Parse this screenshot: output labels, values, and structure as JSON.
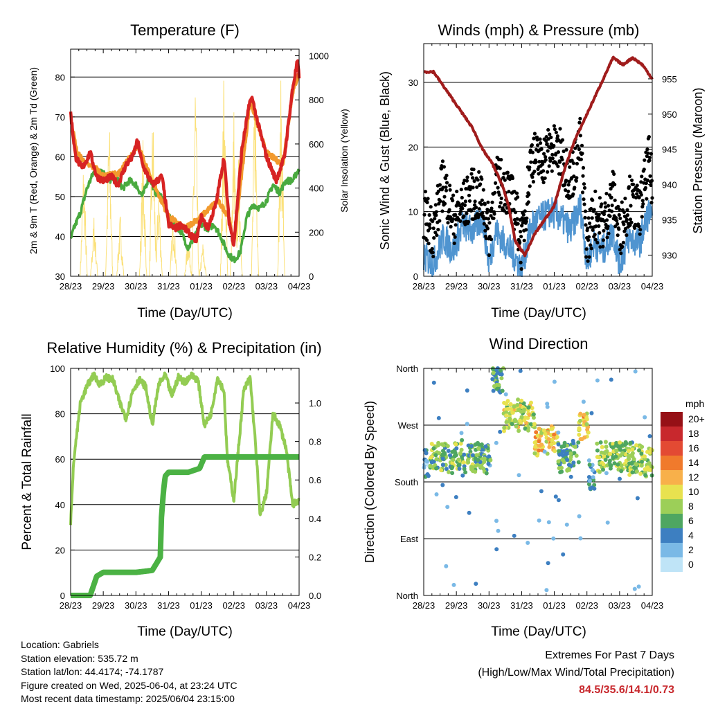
{
  "chart_data": [
    {
      "type": "line",
      "title": "Temperature (F)",
      "xlabel": "Time (Day/UTC)",
      "ylabel": "2m & 9m T (Red, Orange) & 2m Td (Green)",
      "ylabel_right": "Solar Insolation (Yellow)",
      "x_ticks": [
        "28/23",
        "29/23",
        "30/23",
        "31/23",
        "01/23",
        "02/23",
        "03/23",
        "04/23"
      ],
      "ylim": [
        30,
        87
      ],
      "yticks": [
        30,
        40,
        50,
        60,
        70,
        80
      ],
      "y2lim": [
        0,
        1030
      ],
      "y2ticks": [
        0,
        200,
        400,
        600,
        800,
        1000
      ],
      "grid": "horizontal",
      "series": [
        {
          "name": "2m T",
          "color": "#d72323",
          "axis": "left",
          "x": [
            0,
            0.15,
            0.35,
            0.6,
            0.8,
            1.0,
            1.25,
            1.45,
            1.55,
            1.7,
            1.9,
            2.05,
            2.2,
            2.5,
            2.8,
            3.0,
            3.2,
            3.4,
            3.6,
            3.85,
            4.0,
            4.2,
            4.45,
            4.7,
            4.85,
            5.0,
            5.25,
            5.45,
            5.55,
            5.75,
            6.0,
            6.3,
            6.55,
            6.8,
            6.95,
            7.0
          ],
          "y": [
            71,
            60,
            57,
            61,
            55,
            54,
            55,
            53,
            55,
            58,
            60,
            64,
            58,
            53,
            55,
            43,
            42,
            43,
            41,
            39,
            45,
            42,
            48,
            60,
            44,
            38,
            62,
            72,
            75,
            68,
            60,
            54,
            60,
            77,
            84,
            80
          ]
        },
        {
          "name": "9m T",
          "color": "#f29a2e",
          "axis": "left",
          "x": [
            0,
            0.2,
            0.5,
            0.8,
            1.0,
            1.5,
            2.05,
            2.5,
            3.0,
            3.5,
            4.0,
            4.5,
            4.85,
            5.0,
            5.5,
            6.0,
            6.5,
            6.8,
            7.0
          ],
          "y": [
            70,
            61,
            58,
            57,
            55,
            56,
            63,
            54,
            45,
            42,
            45,
            49,
            45,
            38,
            74,
            61,
            58,
            76,
            81
          ]
        },
        {
          "name": "2m Td",
          "color": "#49aa3f",
          "axis": "left",
          "x": [
            0,
            0.1,
            0.3,
            0.5,
            0.7,
            0.9,
            1.0,
            1.2,
            1.4,
            1.6,
            1.8,
            2.0,
            2.2,
            2.4,
            2.6,
            2.8,
            3.0,
            3.2,
            3.4,
            3.6,
            3.8,
            4.0,
            4.2,
            4.4,
            4.6,
            4.8,
            5.0,
            5.2,
            5.4,
            5.6,
            5.8,
            6.0,
            6.2,
            6.4,
            6.6,
            6.8,
            7.0
          ],
          "y": [
            39,
            42,
            46,
            52,
            56,
            57,
            56,
            54,
            55,
            52,
            54,
            53,
            50,
            55,
            51,
            50,
            45,
            43,
            41,
            37,
            40,
            43,
            42,
            43,
            40,
            36,
            34,
            36,
            45,
            48,
            47,
            49,
            53,
            51,
            54,
            54,
            57
          ]
        },
        {
          "name": "Solar",
          "color": "#fbe17a",
          "axis": "right",
          "peaks": [
            {
              "x": 0.4,
              "y": 580
            },
            {
              "x": 0.72,
              "y": 300
            },
            {
              "x": 1.18,
              "y": 810
            },
            {
              "x": 1.52,
              "y": 300
            },
            {
              "x": 2.22,
              "y": 650
            },
            {
              "x": 2.52,
              "y": 820
            },
            {
              "x": 2.7,
              "y": 450
            },
            {
              "x": 3.15,
              "y": 330
            },
            {
              "x": 3.6,
              "y": 200
            },
            {
              "x": 3.82,
              "y": 1000
            },
            {
              "x": 4.05,
              "y": 160
            },
            {
              "x": 4.7,
              "y": 1010
            },
            {
              "x": 5.0,
              "y": 800
            },
            {
              "x": 5.15,
              "y": 580
            },
            {
              "x": 5.65,
              "y": 1010
            },
            {
              "x": 6.45,
              "y": 980
            }
          ]
        }
      ]
    },
    {
      "type": "scatter",
      "title": "Winds (mph) & Pressure (mb)",
      "xlabel": "Time (Day/UTC)",
      "ylabel": "Sonic Wind & Gust (Blue, Black)",
      "ylabel_right": "Station Pressure (Maroon)",
      "x_ticks": [
        "28/23",
        "29/23",
        "30/23",
        "31/23",
        "01/23",
        "02/23",
        "03/23",
        "04/23"
      ],
      "ylim": [
        0,
        36
      ],
      "yticks": [
        0,
        10,
        20,
        30
      ],
      "y2lim": [
        927,
        960
      ],
      "y2ticks": [
        930,
        935,
        940,
        945,
        950,
        955
      ],
      "grid": "horizontal",
      "series": [
        {
          "name": "Gust",
          "color": "#000000",
          "x": [
            0,
            0.3,
            0.6,
            0.9,
            1.2,
            1.5,
            1.8,
            2.0,
            2.2,
            2.5,
            2.8,
            3.0,
            3.3,
            3.6,
            3.9,
            4.2,
            4.5,
            4.8,
            5.0,
            5.2,
            5.5,
            5.8,
            6.0,
            6.3,
            6.6,
            6.9,
            7.0
          ],
          "y": [
            9,
            6,
            14,
            8,
            10,
            12,
            11,
            6,
            14,
            13,
            10,
            4,
            18,
            17,
            19,
            18,
            14,
            20,
            4,
            9,
            7,
            12,
            6,
            11,
            9,
            17,
            13
          ]
        },
        {
          "name": "Wind",
          "color": "#4f94d0",
          "x": [
            0,
            0.3,
            0.6,
            0.9,
            1.2,
            1.5,
            1.8,
            2.0,
            2.2,
            2.5,
            2.8,
            3.0,
            3.3,
            3.6,
            3.9,
            4.2,
            4.5,
            4.8,
            5.0,
            5.2,
            5.5,
            5.8,
            6.0,
            6.3,
            6.6,
            6.9,
            7.0
          ],
          "y": [
            3,
            2,
            6,
            4,
            8,
            7,
            9,
            2,
            7,
            5,
            3,
            1,
            8,
            9,
            10,
            9,
            7,
            11,
            2,
            5,
            4,
            7,
            2,
            6,
            5,
            10,
            8
          ]
        },
        {
          "name": "Pressure",
          "color": "#a01c1c",
          "axis": "right",
          "x": [
            0,
            0.3,
            0.6,
            0.9,
            1.2,
            1.5,
            1.8,
            2.1,
            2.4,
            2.6,
            2.8,
            3.1,
            3.4,
            3.7,
            4.0,
            4.3,
            4.6,
            4.9,
            5.2,
            5.5,
            5.8,
            6.1,
            6.4,
            6.7,
            7.0
          ],
          "y": [
            956,
            956,
            954,
            952,
            950,
            948,
            945,
            943,
            940,
            937,
            932,
            930,
            933,
            935,
            937,
            942,
            946,
            949,
            952,
            955,
            958,
            957,
            958,
            957,
            955
          ]
        }
      ]
    },
    {
      "type": "line",
      "title": "Relative Humidity (%) & Precipitation (in)",
      "xlabel": "Time (Day/UTC)",
      "ylabel": "Percent & Total Rainfall",
      "x_ticks": [
        "28/23",
        "29/23",
        "30/23",
        "31/23",
        "01/23",
        "02/23",
        "03/23",
        "04/23"
      ],
      "ylim": [
        0,
        100
      ],
      "yticks": [
        0,
        20,
        40,
        60,
        80,
        100
      ],
      "y2lim": [
        0,
        1.18
      ],
      "y2ticks": [
        0.0,
        0.2,
        0.4,
        0.6,
        0.8,
        1.0
      ],
      "grid": "horizontal",
      "series": [
        {
          "name": "RH",
          "color": "#93cc53",
          "axis": "left",
          "x": [
            0,
            0.1,
            0.3,
            0.5,
            0.7,
            0.9,
            1.1,
            1.3,
            1.5,
            1.7,
            1.9,
            2.1,
            2.3,
            2.5,
            2.7,
            2.9,
            3.1,
            3.3,
            3.5,
            3.7,
            3.9,
            4.1,
            4.3,
            4.5,
            4.7,
            4.8,
            5.0,
            5.3,
            5.5,
            5.7,
            5.8,
            6.0,
            6.2,
            6.4,
            6.6,
            6.8,
            7.0
          ],
          "y": [
            32,
            60,
            85,
            92,
            97,
            93,
            96,
            95,
            85,
            78,
            90,
            95,
            92,
            75,
            93,
            97,
            88,
            96,
            94,
            97,
            95,
            75,
            80,
            96,
            90,
            60,
            42,
            90,
            96,
            60,
            35,
            45,
            80,
            75,
            65,
            40,
            42
          ]
        },
        {
          "name": "Precipitation",
          "color": "#4bb244",
          "axis": "right",
          "x": [
            0,
            0.6,
            0.7,
            0.8,
            1.0,
            2.0,
            2.5,
            2.75,
            2.78,
            2.85,
            2.9,
            3.0,
            3.3,
            3.6,
            3.95,
            4.1,
            4.4,
            6.0,
            7.0
          ],
          "y": [
            0,
            0,
            0.05,
            0.1,
            0.12,
            0.12,
            0.13,
            0.2,
            0.4,
            0.55,
            0.62,
            0.64,
            0.64,
            0.64,
            0.66,
            0.72,
            0.72,
            0.72,
            0.72
          ]
        }
      ]
    },
    {
      "type": "scatter",
      "title": "Wind Direction",
      "xlabel": "Time (Day/UTC)",
      "ylabel": "Direction (Colored By Speed)",
      "x_ticks": [
        "28/23",
        "29/23",
        "30/23",
        "31/23",
        "01/23",
        "02/23",
        "03/23",
        "04/23"
      ],
      "ylim": [
        0,
        360
      ],
      "ytick_labels": [
        "North",
        "East",
        "South",
        "West",
        "North"
      ],
      "ytick_values": [
        0,
        90,
        180,
        270,
        360
      ],
      "legend_title": "mph",
      "legend_labels": [
        "20+",
        "18",
        "16",
        "14",
        "12",
        "10",
        "8",
        "6",
        "4",
        "2",
        "0"
      ],
      "legend_colors": [
        "#961016",
        "#c8282d",
        "#e34a33",
        "#f07a2c",
        "#f8b04a",
        "#e8e24f",
        "#9ccf58",
        "#4ea661",
        "#3d7fc1",
        "#7ab9e6",
        "#bfe4f7"
      ],
      "regimes": [
        {
          "x_start": 0.0,
          "x_end": 0.15,
          "direction": 210,
          "speed": 3
        },
        {
          "x_start": 0.2,
          "x_end": 1.6,
          "direction": 220,
          "speed": 7
        },
        {
          "x_start": 1.6,
          "x_end": 2.05,
          "direction": 215,
          "speed": 6
        },
        {
          "x_start": 2.1,
          "x_end": 2.45,
          "direction": 340,
          "speed": 6
        },
        {
          "x_start": 2.45,
          "x_end": 3.4,
          "direction": 285,
          "speed": 9
        },
        {
          "x_start": 3.4,
          "x_end": 4.1,
          "direction": 245,
          "speed": 11
        },
        {
          "x_start": 4.1,
          "x_end": 4.75,
          "direction": 220,
          "speed": 6
        },
        {
          "x_start": 4.75,
          "x_end": 5.05,
          "direction": 270,
          "speed": 11
        },
        {
          "x_start": 5.05,
          "x_end": 5.25,
          "direction": 190,
          "speed": 4
        },
        {
          "x_start": 5.3,
          "x_end": 6.3,
          "direction": 220,
          "speed": 8
        },
        {
          "x_start": 6.3,
          "x_end": 7.0,
          "direction": 215,
          "speed": 8
        }
      ]
    }
  ],
  "info": {
    "location": "Location: Gabriels",
    "elevation": "Station elevation: 535.72 m",
    "latlon": "Station lat/lon: 44.4174; -74.1787",
    "created": "Figure created on Wed, 2025-06-04, at 23:24 UTC",
    "timestamp": "Most recent data timestamp: 2025/06/04 23:15:00"
  },
  "extremes": {
    "title": "Extremes For Past 7 Days",
    "subtitle": "(High/Low/Max Wind/Total Precipitation)",
    "values": "84.5/35.6/14.1/0.73"
  }
}
